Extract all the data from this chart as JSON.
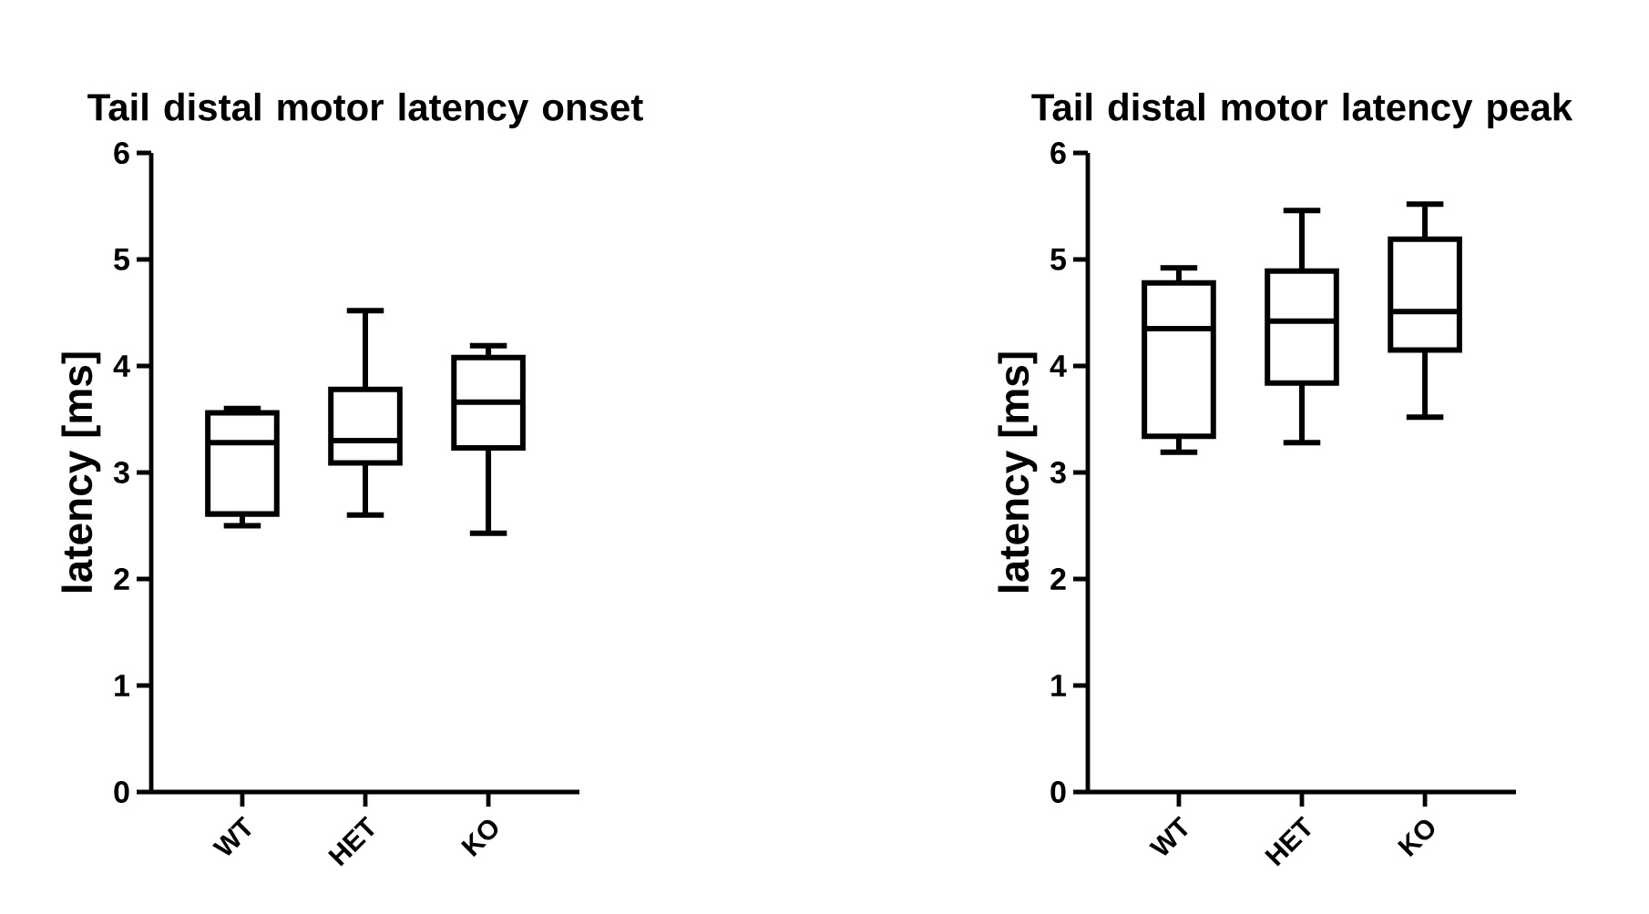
{
  "chart_data": [
    {
      "type": "box",
      "title": "Tail distal motor latency onset",
      "ylabel": "latency [ms]",
      "categories": [
        "WT",
        "HET",
        "KO"
      ],
      "color": "#000000",
      "ylim": [
        0,
        6
      ],
      "yticks": [
        0,
        1,
        2,
        3,
        4,
        5,
        6
      ],
      "boxes": [
        {
          "low": 2.5,
          "q1": 2.61,
          "median": 3.28,
          "q3": 3.56,
          "high": 3.6
        },
        {
          "low": 2.6,
          "q1": 3.09,
          "median": 3.3,
          "q3": 3.78,
          "high": 4.52
        },
        {
          "low": 2.43,
          "q1": 3.23,
          "median": 3.66,
          "q3": 4.08,
          "high": 4.19
        }
      ]
    },
    {
      "type": "box",
      "title": "Tail distal motor latency peak",
      "ylabel": "latency [ms]",
      "categories": [
        "WT",
        "HET",
        "KO"
      ],
      "color": "#000000",
      "ylim": [
        0,
        6
      ],
      "yticks": [
        0,
        1,
        2,
        3,
        4,
        5,
        6
      ],
      "boxes": [
        {
          "low": 3.19,
          "q1": 3.34,
          "median": 4.35,
          "q3": 4.78,
          "high": 4.92
        },
        {
          "low": 3.28,
          "q1": 3.84,
          "median": 4.42,
          "q3": 4.89,
          "high": 5.46
        },
        {
          "low": 3.52,
          "q1": 4.15,
          "median": 4.51,
          "q3": 5.19,
          "high": 5.52
        }
      ]
    }
  ]
}
